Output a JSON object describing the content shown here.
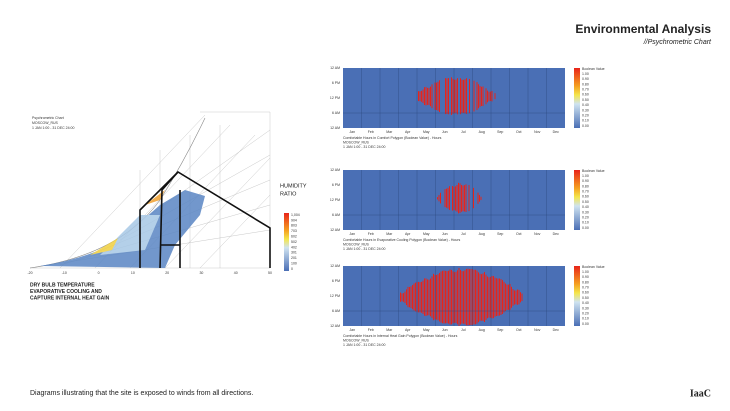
{
  "header": {
    "title": "Environmental Analysis",
    "subtitle": "//Psychrometric Chart"
  },
  "psychrometric": {
    "info": [
      "Psychrometric Chart",
      "MOSCOW_RUS",
      "1 JAN 1:00 - 31 DEC 24:00"
    ],
    "y_label": [
      "HUMIDITY",
      "RATIO"
    ],
    "x_label": [
      "DRY BULB TEMPERATURE",
      "EVAPORATIVE COOLING AND",
      "CAPTURE INTERNAL HEAT GAIN"
    ],
    "x_ticks": [
      "-20",
      "-10",
      "0",
      "10",
      "20",
      "30",
      "40",
      "50"
    ],
    "legend": [
      "1,004",
      "904",
      "803",
      "703",
      "602",
      "502",
      "402",
      "301",
      "201",
      "100",
      "0"
    ]
  },
  "heatmaps": [
    {
      "caption": [
        "Comfortable Hours in Comfort Polygon (Boolean Value) - Hours",
        "MOSCOW_RUS",
        "1 JAN 1:00 - 31 DEC 24:00"
      ]
    },
    {
      "caption": [
        "Comfortable Hours in Evaporative Cooling Polygon (Boolean Value) - Hours",
        "MOSCOW_RUS",
        "1 JAN 1:00 - 31 DEC 24:00"
      ]
    },
    {
      "caption": [
        "Comfortable Hours in Internal Heat Gain Polygon (Boolean Value) - Hours",
        "MOSCOW_RUS",
        "1 JAN 1:00 - 31 DEC 24:00"
      ]
    }
  ],
  "months": [
    "Jan",
    "Feb",
    "Mar",
    "Apr",
    "May",
    "Jun",
    "Jul",
    "Aug",
    "Sep",
    "Oct",
    "Nov",
    "Dec"
  ],
  "hours": [
    "12 AM",
    "6 PM",
    "12 PM",
    "6 AM",
    "12 AM"
  ],
  "legend_title": "Boolean Value",
  "legend_values": [
    "1.00",
    "0.90",
    "0.80",
    "0.70",
    "0.60",
    "0.50",
    "0.40",
    "0.30",
    "0.20",
    "0.10",
    "0.00"
  ],
  "caption": "Diagrams illustrating that the site is exposed to winds from all directions.",
  "logo": "IaaC"
}
